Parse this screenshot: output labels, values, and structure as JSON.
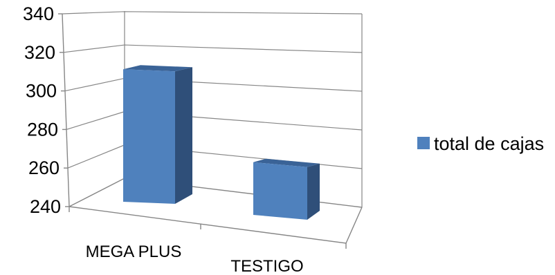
{
  "chart_data": {
    "type": "bar",
    "style": "3d-clustered-column",
    "categories": [
      "MEGA PLUS",
      "TESTIGO"
    ],
    "series": [
      {
        "name": "total de cajas",
        "values": [
          323,
          273
        ]
      }
    ],
    "ylim": [
      240,
      340
    ],
    "yticks": [
      "240",
      "260",
      "280",
      "300",
      "320",
      "340"
    ],
    "ystep": 20,
    "grid": true,
    "legend_position": "right",
    "colors": {
      "front": "#4F81BD",
      "side": "#2F4F79",
      "top": "#3A6397",
      "grid": "#868686"
    }
  }
}
